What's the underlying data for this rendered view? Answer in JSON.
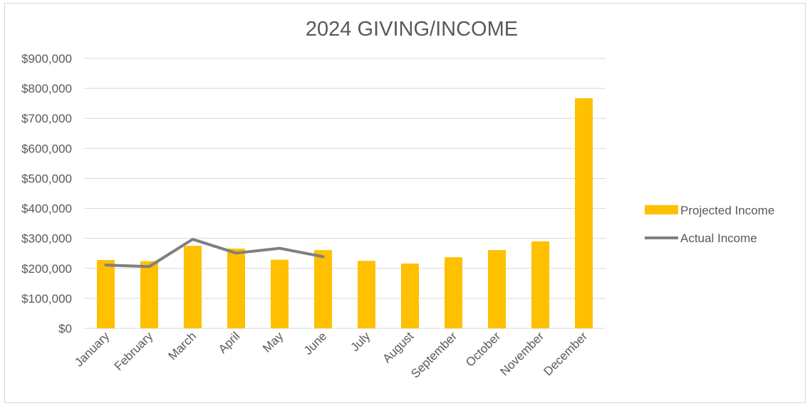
{
  "chart_data": {
    "type": "bar",
    "title": "2024 GIVING/INCOME",
    "categories": [
      "January",
      "February",
      "March",
      "April",
      "May",
      "June",
      "July",
      "August",
      "September",
      "October",
      "November",
      "December"
    ],
    "series": [
      {
        "name": "Projected Income",
        "type": "bar",
        "color": "#FFC000",
        "values": [
          228000,
          224000,
          275000,
          266000,
          229000,
          261000,
          225000,
          216000,
          237000,
          261000,
          290000,
          767000
        ]
      },
      {
        "name": "Actual Income",
        "type": "line",
        "color": "#7F7F7F",
        "values": [
          211000,
          206000,
          297000,
          251000,
          267000,
          239000,
          null,
          null,
          null,
          null,
          null,
          null
        ]
      }
    ],
    "ylim": [
      0,
      900000
    ],
    "yticks": [
      0,
      100000,
      200000,
      300000,
      400000,
      500000,
      600000,
      700000,
      800000,
      900000
    ],
    "ytick_labels": [
      "$0",
      "$100,000",
      "$200,000",
      "$300,000",
      "$400,000",
      "$500,000",
      "$600,000",
      "$700,000",
      "$800,000",
      "$900,000"
    ],
    "grid": true,
    "legend_position": "right",
    "xlabel": "",
    "ylabel": ""
  }
}
